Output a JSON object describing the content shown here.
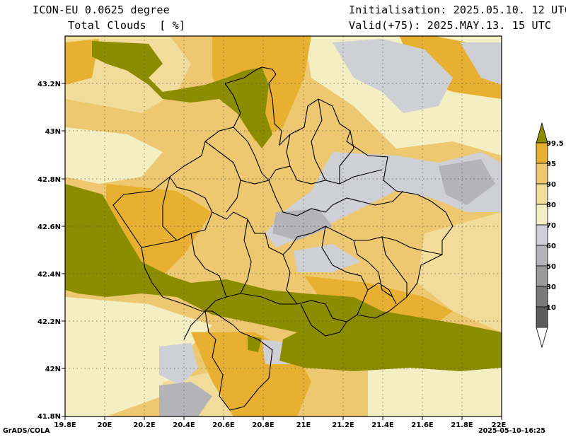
{
  "header": {
    "model": "ICON-EU 0.0625 degree",
    "variable": "Total Clouds  [ %]",
    "initialisation": "Initialisation: 2025.05.10. 12 UTC",
    "valid": "Valid(+75): 2025.MAY.13. 15 UTC"
  },
  "axes": {
    "x_ticks": [
      "19.8E",
      "20E",
      "20.2E",
      "20.4E",
      "20.6E",
      "20.8E",
      "21E",
      "21.2E",
      "21.4E",
      "21.6E",
      "21.8E",
      "22E"
    ],
    "y_ticks": [
      "43.2N",
      "43N",
      "42.8N",
      "42.6N",
      "42.4N",
      "42.2N",
      "42N",
      "41.8N"
    ],
    "x_range": [
      19.8,
      22.0
    ],
    "y_range": [
      41.8,
      43.4
    ],
    "grid": true
  },
  "colorbar": {
    "labels": [
      "99.5",
      "95",
      "90",
      "80",
      "70",
      "60",
      "50",
      "30",
      "10"
    ],
    "colors": [
      "#8c8c00",
      "#e8b030",
      "#eec870",
      "#f2dc9c",
      "#f3efc2",
      "#cfcfd6",
      "#b4b4b8",
      "#9a9a9a",
      "#7a7a7a",
      "#5c5c5c",
      "#ffffff"
    ]
  },
  "footer": {
    "left": "GrADS/COLA",
    "right": "2025-05-10-16:25"
  }
}
